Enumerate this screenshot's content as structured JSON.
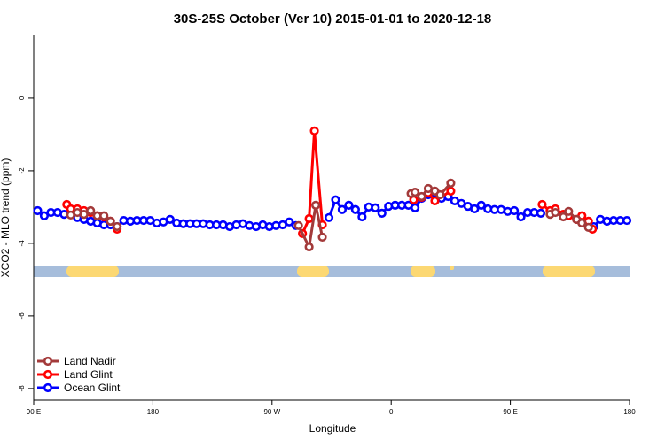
{
  "chart_data": {
    "type": "line",
    "title": "30S-25S October (Ver 10)   2015-01-01 to 2020-12-18",
    "x_label": "Longitude",
    "y_label": "XCO2 - MLO trend (ppm)",
    "xlim": [
      90,
      540
    ],
    "ylim": [
      -8.32,
      1.73
    ],
    "xticks": [
      {
        "value": 90,
        "label": "90 E"
      },
      180,
      {
        "value": 270,
        "label": "90 W"
      },
      {
        "value": 360,
        "label": "0"
      },
      {
        "value": 450,
        "label": "90 E"
      },
      {
        "value": 540,
        "label": "180"
      }
    ],
    "yticks": [
      -8,
      -6,
      -4,
      -2,
      0
    ],
    "legend": "bottom-left",
    "series": [
      {
        "name": "Land Nadir",
        "color": "#a33a3a",
        "x": [
          118,
          123,
          128,
          133,
          138,
          143,
          148,
          153,
          220,
          290,
          298,
          303,
          308,
          340,
          375,
          378,
          383,
          388,
          393,
          397,
          405,
          440,
          480,
          484,
          490,
          494,
          500,
          504,
          509
        ],
        "values": [
          -3.22,
          -3.15,
          -3.2,
          -3.1,
          -3.24,
          -3.24,
          -3.39,
          -3.54,
          null,
          -3.51,
          -4.1,
          -2.95,
          -3.83,
          null,
          -2.63,
          -2.59,
          -2.71,
          -2.49,
          -2.56,
          -2.66,
          -2.34,
          null,
          -3.2,
          -3.15,
          -3.27,
          -3.12,
          -3.34,
          -3.44,
          -3.56
        ]
      },
      {
        "name": "Land Glint",
        "color": "#ff0000",
        "x": [
          115,
          118,
          123,
          128,
          133,
          138,
          143,
          148,
          153,
          220,
          293,
          298,
          302,
          308,
          340,
          377,
          383,
          388,
          393,
          405,
          440,
          474,
          480,
          484,
          490,
          494,
          500,
          504,
          509,
          512
        ],
        "values": [
          -2.93,
          -3.05,
          -3.05,
          -3.1,
          -3.15,
          -3.24,
          -3.27,
          -3.39,
          -3.61,
          null,
          -3.73,
          -3.32,
          -0.9,
          -3.49,
          null,
          -2.8,
          -2.73,
          -2.61,
          -2.83,
          -2.56,
          null,
          -2.93,
          -3.1,
          -3.05,
          -3.2,
          -3.24,
          -3.34,
          -3.24,
          -3.39,
          -3.61
        ]
      },
      {
        "name": "Ocean Glint",
        "color": "#0000ff",
        "x": [
          93,
          98,
          103,
          108,
          113,
          118,
          123,
          128,
          133,
          138,
          143,
          148,
          153,
          158,
          163,
          168,
          173,
          178,
          183,
          188,
          193,
          198,
          203,
          208,
          213,
          218,
          223,
          228,
          233,
          238,
          243,
          248,
          253,
          258,
          263,
          268,
          273,
          278,
          283,
          288,
          293,
          298,
          303,
          308,
          313,
          318,
          323,
          328,
          333,
          338,
          343,
          348,
          353,
          358,
          363,
          368,
          373,
          378,
          383,
          388,
          393,
          398,
          403,
          408,
          413,
          418,
          423,
          428,
          433,
          438,
          443,
          448,
          453,
          458,
          463,
          468,
          473,
          478,
          483,
          488,
          493,
          498,
          503,
          508,
          513,
          518,
          523,
          528,
          533,
          538
        ],
        "values": [
          -3.1,
          -3.24,
          -3.15,
          -3.15,
          -3.2,
          -3.2,
          -3.29,
          -3.34,
          -3.39,
          -3.44,
          -3.49,
          -3.49,
          -3.54,
          -3.37,
          -3.39,
          -3.37,
          -3.37,
          -3.37,
          -3.44,
          -3.41,
          -3.34,
          -3.44,
          -3.46,
          -3.46,
          -3.46,
          -3.46,
          -3.49,
          -3.49,
          -3.49,
          -3.54,
          -3.49,
          -3.46,
          -3.51,
          -3.54,
          -3.49,
          -3.54,
          -3.51,
          -3.49,
          -3.41,
          -3.51,
          null,
          null,
          null,
          null,
          -3.29,
          -2.8,
          -3.07,
          -2.95,
          -3.07,
          -3.27,
          -3.0,
          -3.02,
          -3.17,
          -2.98,
          -2.95,
          -2.95,
          -2.95,
          -3.02,
          -2.76,
          -2.66,
          -2.61,
          -2.76,
          -2.71,
          -2.83,
          -2.9,
          -2.98,
          -3.05,
          -2.95,
          -3.05,
          -3.07,
          -3.07,
          -3.12,
          -3.1,
          -3.27,
          -3.15,
          -3.15,
          -3.17,
          null,
          null,
          null,
          null,
          null,
          null,
          null,
          -3.54,
          -3.34,
          -3.39,
          -3.37,
          -3.37,
          -3.37
        ]
      }
    ]
  }
}
